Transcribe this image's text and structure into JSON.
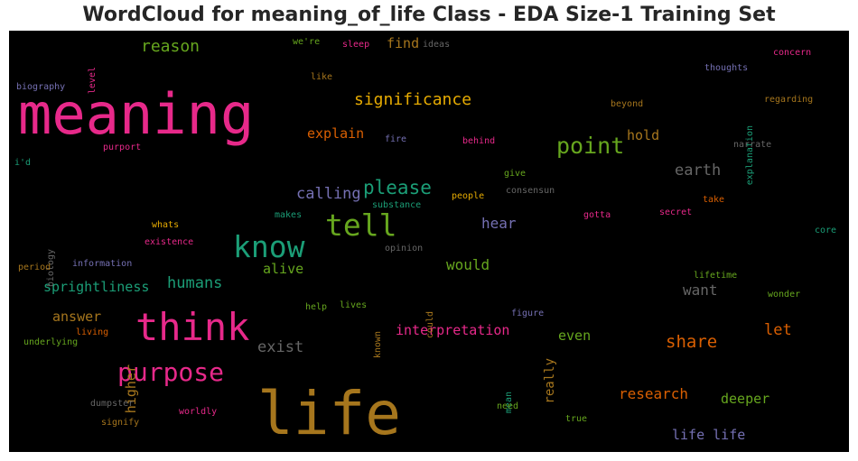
{
  "chart_data": {
    "type": "wordcloud",
    "title": "WordCloud for meaning_of_life Class - EDA Size-1 Training Set",
    "background": "#000000",
    "colors": {
      "pink": "#e7298a",
      "orange": "#d95f02",
      "gold": "#b07a16",
      "yellow": "#e6ab02",
      "green": "#66a61e",
      "teal": "#1b9e77",
      "purple": "#7570b3",
      "gray": "#666666",
      "brown": "#a6761d"
    },
    "words": [
      {
        "text": "meaning",
        "size": 62,
        "color": "#e7298a"
      },
      {
        "text": "life",
        "size": 66,
        "color": "#a6761d"
      },
      {
        "text": "think",
        "size": 42,
        "color": "#e7298a"
      },
      {
        "text": "know",
        "size": 33,
        "color": "#1b9e77"
      },
      {
        "text": "tell",
        "size": 33,
        "color": "#66a61e"
      },
      {
        "text": "purpose",
        "size": 28,
        "color": "#e7298a"
      },
      {
        "text": "point",
        "size": 25,
        "color": "#66a61e"
      },
      {
        "text": "please",
        "size": 21,
        "color": "#1b9e77"
      },
      {
        "text": "significance",
        "size": 18,
        "color": "#e6ab02"
      },
      {
        "text": "reason",
        "size": 18,
        "color": "#66a61e"
      },
      {
        "text": "share",
        "size": 19,
        "color": "#d95f02"
      },
      {
        "text": "earth",
        "size": 17,
        "color": "#666666"
      },
      {
        "text": "research",
        "size": 16,
        "color": "#d95f02"
      },
      {
        "text": "humans",
        "size": 17,
        "color": "#1b9e77"
      },
      {
        "text": "calling",
        "size": 17,
        "color": "#7570b3"
      },
      {
        "text": "would",
        "size": 16,
        "color": "#66a61e"
      },
      {
        "text": "hear",
        "size": 16,
        "color": "#7570b3"
      },
      {
        "text": "exist",
        "size": 17,
        "color": "#666666"
      },
      {
        "text": "want",
        "size": 16,
        "color": "#666666"
      },
      {
        "text": "let",
        "size": 17,
        "color": "#d95f02"
      },
      {
        "text": "even",
        "size": 15,
        "color": "#66a61e"
      },
      {
        "text": "deeper",
        "size": 15,
        "color": "#66a61e"
      },
      {
        "text": "life life",
        "size": 15,
        "color": "#7570b3"
      },
      {
        "text": "interpretation",
        "size": 15,
        "color": "#e7298a"
      },
      {
        "text": "sprightliness",
        "size": 15,
        "color": "#1b9e77"
      },
      {
        "text": "answer",
        "size": 15,
        "color": "#a6761d"
      },
      {
        "text": "alive",
        "size": 15,
        "color": "#66a61e"
      },
      {
        "text": "explain",
        "size": 15,
        "color": "#d95f02"
      },
      {
        "text": "hold",
        "size": 15,
        "color": "#a6761d"
      },
      {
        "text": "find",
        "size": 15,
        "color": "#a6761d"
      },
      {
        "text": "higher",
        "size": 15,
        "color": "#a6761d"
      },
      {
        "text": "really",
        "size": 14,
        "color": "#a6761d"
      },
      {
        "text": "we're",
        "size": 10,
        "color": "#66a61e"
      },
      {
        "text": "sleep",
        "size": 10,
        "color": "#e7298a"
      },
      {
        "text": "ideas",
        "size": 10,
        "color": "#666666"
      },
      {
        "text": "concern",
        "size": 10,
        "color": "#e7298a"
      },
      {
        "text": "level",
        "size": 10,
        "color": "#e7298a"
      },
      {
        "text": "biography",
        "size": 10,
        "color": "#7570b3"
      },
      {
        "text": "like",
        "size": 10,
        "color": "#a6761d"
      },
      {
        "text": "thoughts",
        "size": 10,
        "color": "#7570b3"
      },
      {
        "text": "explanation",
        "size": 10,
        "color": "#1b9e77"
      },
      {
        "text": "regarding",
        "size": 10,
        "color": "#a6761d"
      },
      {
        "text": "beyond",
        "size": 10,
        "color": "#a6761d"
      },
      {
        "text": "purport",
        "size": 10,
        "color": "#e7298a"
      },
      {
        "text": "fire",
        "size": 10,
        "color": "#7570b3"
      },
      {
        "text": "behind",
        "size": 10,
        "color": "#e7298a"
      },
      {
        "text": "narrate",
        "size": 10,
        "color": "#666666"
      },
      {
        "text": "i'd",
        "size": 10,
        "color": "#1b9e77"
      },
      {
        "text": "give",
        "size": 10,
        "color": "#66a61e"
      },
      {
        "text": "consensun",
        "size": 10,
        "color": "#666666"
      },
      {
        "text": "take",
        "size": 10,
        "color": "#d95f02"
      },
      {
        "text": "people",
        "size": 10,
        "color": "#e6ab02"
      },
      {
        "text": "substance",
        "size": 10,
        "color": "#1b9e77"
      },
      {
        "text": "makes",
        "size": 10,
        "color": "#1b9e77"
      },
      {
        "text": "gotta",
        "size": 10,
        "color": "#e7298a"
      },
      {
        "text": "secret",
        "size": 10,
        "color": "#e7298a"
      },
      {
        "text": "whats",
        "size": 10,
        "color": "#e6ab02"
      },
      {
        "text": "biology",
        "size": 10,
        "color": "#666666"
      },
      {
        "text": "existence",
        "size": 10,
        "color": "#e7298a"
      },
      {
        "text": "opinion",
        "size": 10,
        "color": "#666666"
      },
      {
        "text": "core",
        "size": 10,
        "color": "#1b9e77"
      },
      {
        "text": "period",
        "size": 10,
        "color": "#a6761d"
      },
      {
        "text": "information",
        "size": 10,
        "color": "#7570b3"
      },
      {
        "text": "lifetime",
        "size": 10,
        "color": "#66a61e"
      },
      {
        "text": "wonder",
        "size": 10,
        "color": "#66a61e"
      },
      {
        "text": "help",
        "size": 10,
        "color": "#66a61e"
      },
      {
        "text": "lives",
        "size": 10,
        "color": "#66a61e"
      },
      {
        "text": "known",
        "size": 10,
        "color": "#a6761d"
      },
      {
        "text": "could",
        "size": 10,
        "color": "#a6761d"
      },
      {
        "text": "figure",
        "size": 10,
        "color": "#7570b3"
      },
      {
        "text": "living",
        "size": 10,
        "color": "#d95f02"
      },
      {
        "text": "underlying",
        "size": 10,
        "color": "#66a61e"
      },
      {
        "text": "mean",
        "size": 10,
        "color": "#1b9e77"
      },
      {
        "text": "dumpster",
        "size": 10,
        "color": "#666666"
      },
      {
        "text": "need",
        "size": 10,
        "color": "#66a61e"
      },
      {
        "text": "true",
        "size": 10,
        "color": "#66a61e"
      },
      {
        "text": "signify",
        "size": 10,
        "color": "#a6761d"
      },
      {
        "text": "worldly",
        "size": 10,
        "color": "#e7298a"
      }
    ]
  }
}
